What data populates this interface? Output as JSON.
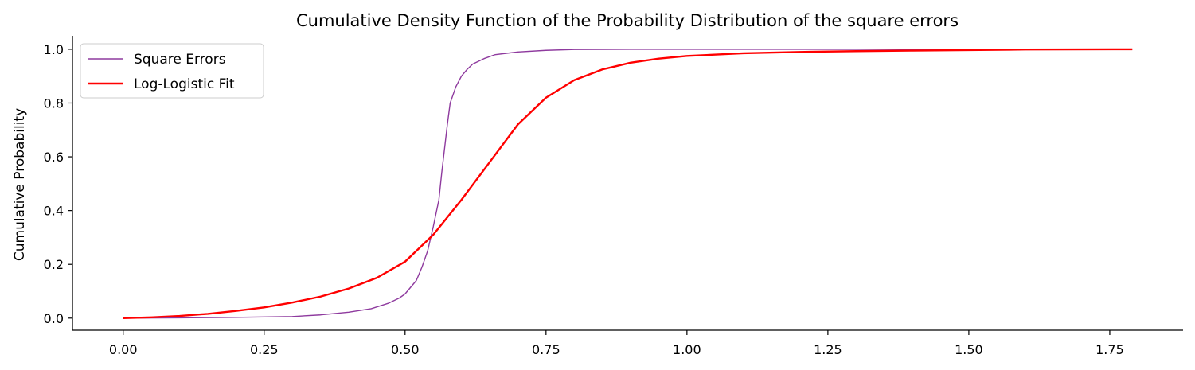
{
  "chart_data": {
    "type": "line",
    "title": "Cumulative Density Function of the Probability Distribution of the square errors",
    "xlabel": "",
    "ylabel": "Cumulative Probability",
    "xlim": [
      -0.09,
      1.88
    ],
    "ylim": [
      -0.045,
      1.05
    ],
    "xticks": [
      0.0,
      0.25,
      0.5,
      0.75,
      1.0,
      1.25,
      1.5,
      1.75
    ],
    "xtick_labels": [
      "0.00",
      "0.25",
      "0.50",
      "0.75",
      "1.00",
      "1.25",
      "1.50",
      "1.75"
    ],
    "yticks": [
      0.0,
      0.2,
      0.4,
      0.6,
      0.8,
      1.0
    ],
    "ytick_labels": [
      "0.0",
      "0.2",
      "0.4",
      "0.6",
      "0.8",
      "1.0"
    ],
    "grid": false,
    "legend": "top-left",
    "series": [
      {
        "name": "Square Errors",
        "color": "#8e3a9e",
        "line_style": "thin",
        "x": [
          0.0,
          0.1,
          0.2,
          0.3,
          0.35,
          0.4,
          0.44,
          0.47,
          0.49,
          0.5,
          0.52,
          0.53,
          0.54,
          0.55,
          0.56,
          0.565,
          0.57,
          0.575,
          0.58,
          0.59,
          0.6,
          0.61,
          0.62,
          0.64,
          0.66,
          0.7,
          0.75,
          0.8,
          0.9,
          1.0,
          1.25,
          1.5,
          1.79
        ],
        "y": [
          0.0,
          0.001,
          0.003,
          0.006,
          0.012,
          0.022,
          0.035,
          0.055,
          0.075,
          0.09,
          0.14,
          0.19,
          0.25,
          0.34,
          0.44,
          0.54,
          0.63,
          0.72,
          0.8,
          0.86,
          0.9,
          0.925,
          0.945,
          0.965,
          0.98,
          0.99,
          0.996,
          0.999,
          1.0,
          1.0,
          1.0,
          1.0,
          1.0
        ]
      },
      {
        "name": "Log-Logistic Fit",
        "color": "#ff0000",
        "line_style": "thick",
        "x": [
          0.0,
          0.05,
          0.1,
          0.15,
          0.2,
          0.25,
          0.3,
          0.35,
          0.4,
          0.45,
          0.5,
          0.55,
          0.6,
          0.65,
          0.7,
          0.75,
          0.8,
          0.85,
          0.9,
          0.95,
          1.0,
          1.1,
          1.2,
          1.3,
          1.4,
          1.5,
          1.6,
          1.79
        ],
        "y": [
          0.0,
          0.003,
          0.008,
          0.016,
          0.027,
          0.04,
          0.058,
          0.08,
          0.11,
          0.15,
          0.21,
          0.31,
          0.44,
          0.58,
          0.72,
          0.82,
          0.885,
          0.925,
          0.95,
          0.965,
          0.975,
          0.985,
          0.99,
          0.993,
          0.995,
          0.997,
          0.999,
          1.0
        ]
      }
    ]
  }
}
